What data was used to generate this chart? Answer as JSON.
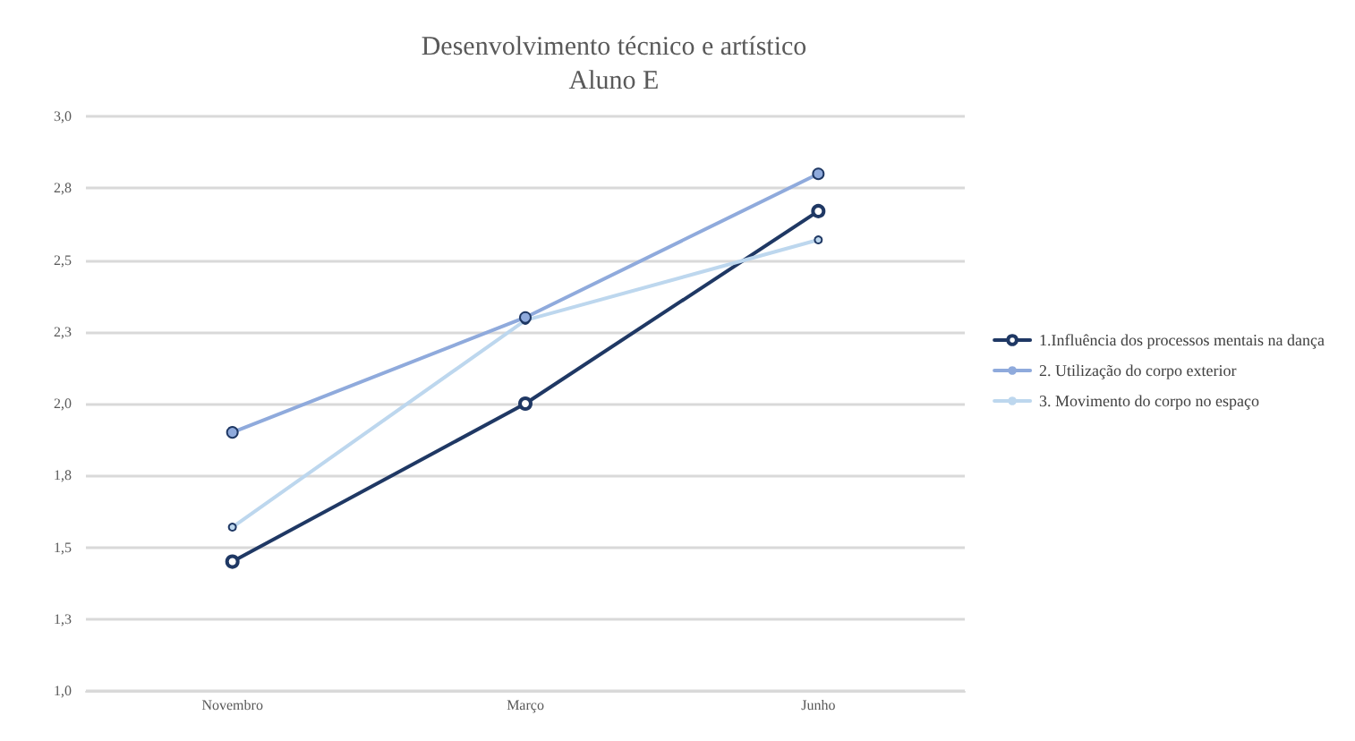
{
  "chart_data": {
    "type": "line",
    "title": "Desenvolvimento técnico e artístico",
    "subtitle": "Aluno E",
    "categories": [
      "Novembro",
      "Março",
      "Junho"
    ],
    "series": [
      {
        "name": "1.Influência dos processos mentais na dança",
        "color": "#1f3864",
        "values": [
          1.45,
          2.0,
          2.67
        ]
      },
      {
        "name": "2. Utilização do corpo exterior",
        "color": "#8faadc",
        "values": [
          1.9,
          2.3,
          2.8
        ]
      },
      {
        "name": "3. Movimento do corpo no espaço",
        "color": "#bdd7ee",
        "values": [
          1.57,
          2.29,
          2.57
        ]
      }
    ],
    "ylim": [
      1.0,
      3.0
    ],
    "yticks": [
      {
        "value": 1.0,
        "label": "1,0"
      },
      {
        "value": 1.25,
        "label": "1,3"
      },
      {
        "value": 1.5,
        "label": "1,5"
      },
      {
        "value": 1.75,
        "label": "1,8"
      },
      {
        "value": 2.0,
        "label": "2,0"
      },
      {
        "value": 2.25,
        "label": "2,3"
      },
      {
        "value": 2.5,
        "label": "2,5"
      },
      {
        "value": 2.75,
        "label": "2,8"
      },
      {
        "value": 3.0,
        "label": "3,0"
      }
    ],
    "grid": "y",
    "legend": "right",
    "marker": "circle",
    "line_style": "solid"
  }
}
